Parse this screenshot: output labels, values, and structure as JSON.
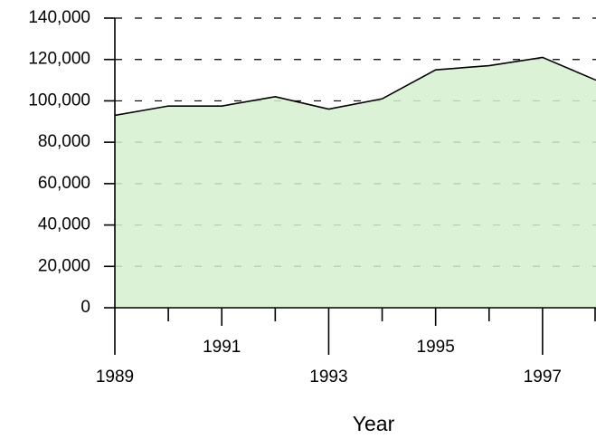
{
  "chart_data": {
    "type": "area",
    "x_label": "Year",
    "x": [
      1989,
      1990,
      1991,
      1992,
      1993,
      1994,
      1995,
      1996,
      1997,
      1998
    ],
    "values": [
      93000,
      97500,
      97500,
      102000,
      96000,
      101000,
      115000,
      117000,
      121000,
      110000
    ],
    "color": "#d6f0cf",
    "line_color": "#000000",
    "xlim": [
      1989,
      1998
    ],
    "xticks": [
      1989,
      1991,
      1993,
      1995,
      1997
    ],
    "xminor": [
      1990,
      1992,
      1994,
      1996,
      1998
    ],
    "ylim": [
      0,
      140000
    ],
    "yticks": [
      {
        "value": 0,
        "label": "0"
      },
      {
        "value": 20000,
        "label": "20,000"
      },
      {
        "value": 40000,
        "label": "40,000"
      },
      {
        "value": 60000,
        "label": "60,000"
      },
      {
        "value": 80000,
        "label": "80,000"
      },
      {
        "value": 100000,
        "label": "100,000"
      },
      {
        "value": 120000,
        "label": "120,000"
      },
      {
        "value": 140000,
        "label": "140,000"
      }
    ],
    "grid": true
  }
}
